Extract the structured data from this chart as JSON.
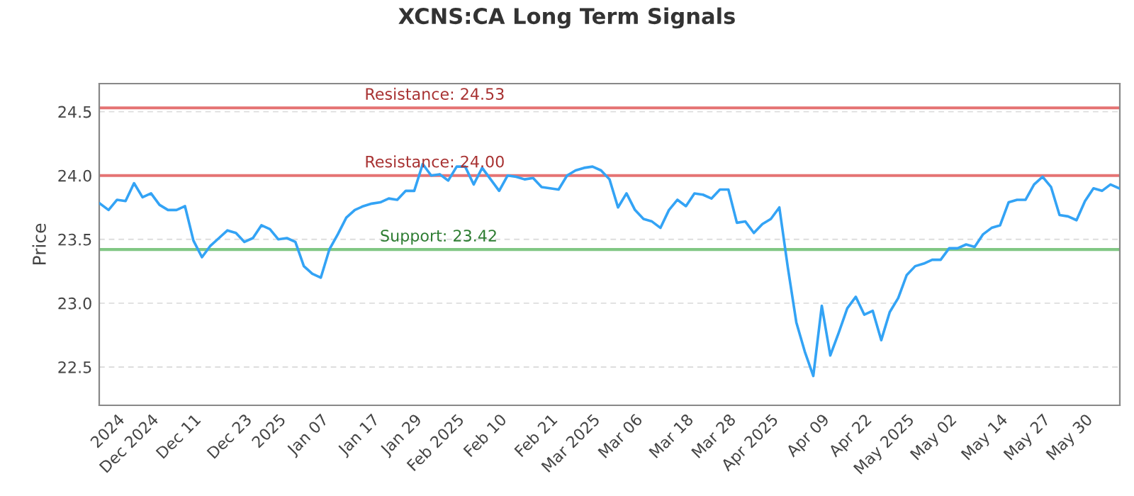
{
  "chart_data": {
    "type": "line",
    "title": "XCNS:CA Long Term Signals",
    "ylabel": "Price",
    "categories": [
      null,
      null,
      "2024",
      null,
      null,
      null,
      "Dec 2024",
      null,
      null,
      null,
      null,
      "Dec 11",
      null,
      null,
      null,
      null,
      null,
      "Dec 23",
      null,
      null,
      null,
      "2025",
      null,
      null,
      null,
      null,
      "Jan 07",
      null,
      null,
      null,
      null,
      null,
      "Jan 17",
      null,
      null,
      null,
      null,
      "Jan 29",
      null,
      null,
      null,
      null,
      "Feb 2025",
      null,
      null,
      null,
      null,
      "Feb 10",
      null,
      null,
      null,
      null,
      null,
      "Feb 21",
      null,
      null,
      null,
      null,
      "Mar 2025",
      null,
      null,
      null,
      null,
      "Mar 06",
      null,
      null,
      null,
      null,
      null,
      "Mar 18",
      null,
      null,
      null,
      null,
      "Mar 28",
      null,
      null,
      null,
      null,
      "Apr 2025",
      null,
      null,
      null,
      null,
      null,
      "Apr 09",
      null,
      null,
      null,
      null,
      "Apr 22",
      null,
      null,
      null,
      null,
      "May 2025",
      null,
      null,
      null,
      null,
      "May 02",
      null,
      null,
      null,
      null,
      null,
      "May 14",
      null,
      null,
      null,
      null,
      "May 27",
      null,
      null,
      null,
      null,
      "May 30",
      null,
      null,
      null,
      null
    ],
    "series": [
      {
        "color": "#33a3f5",
        "values": [
          23.78,
          23.73,
          23.81,
          23.8,
          23.94,
          23.83,
          23.86,
          23.77,
          23.73,
          23.73,
          23.76,
          23.49,
          23.36,
          23.45,
          23.51,
          23.57,
          23.55,
          23.48,
          23.51,
          23.61,
          23.58,
          23.5,
          23.51,
          23.48,
          23.29,
          23.23,
          23.2,
          23.42,
          23.54,
          23.67,
          23.73,
          23.76,
          23.78,
          23.79,
          23.82,
          23.81,
          23.88,
          23.88,
          24.09,
          24.0,
          24.01,
          23.96,
          24.07,
          24.07,
          23.93,
          24.06,
          23.97,
          23.88,
          24.0,
          23.99,
          23.97,
          23.98,
          23.91,
          23.9,
          23.89,
          24.0,
          24.04,
          24.06,
          24.07,
          24.04,
          23.97,
          23.75,
          23.86,
          23.73,
          23.66,
          23.64,
          23.59,
          23.73,
          23.81,
          23.76,
          23.86,
          23.85,
          23.82,
          23.89,
          23.89,
          23.63,
          23.64,
          23.55,
          23.62,
          23.66,
          23.75,
          23.28,
          22.85,
          22.62,
          22.43,
          22.98,
          22.59,
          22.77,
          22.96,
          23.05,
          22.91,
          22.94,
          22.71,
          22.93,
          23.04,
          23.22,
          23.29,
          23.31,
          23.34,
          23.34,
          23.43,
          23.43,
          23.46,
          23.44,
          23.54,
          23.59,
          23.61,
          23.79,
          23.81,
          23.81,
          23.93,
          23.99,
          23.91,
          23.69,
          23.68,
          23.65,
          23.8,
          23.9,
          23.88,
          23.93,
          23.9
        ]
      }
    ],
    "ylim": [
      22.2,
      24.72
    ],
    "yticks": [
      22.5,
      {
        "value": 23,
        "label": "23.0"
      },
      23.5,
      {
        "value": 24,
        "label": "24.0"
      },
      24.5
    ],
    "grid": "y",
    "ref_lines": [
      {
        "axis": "y",
        "value": 24.53,
        "label": "Resistance: 24.53",
        "color": "#e57373"
      },
      {
        "axis": "y",
        "value": 24.0,
        "label": "Resistance: 24.00",
        "color": "#e57373"
      },
      {
        "axis": "y",
        "value": 23.42,
        "label": "Support: 23.42",
        "color": "#81c784"
      }
    ]
  }
}
